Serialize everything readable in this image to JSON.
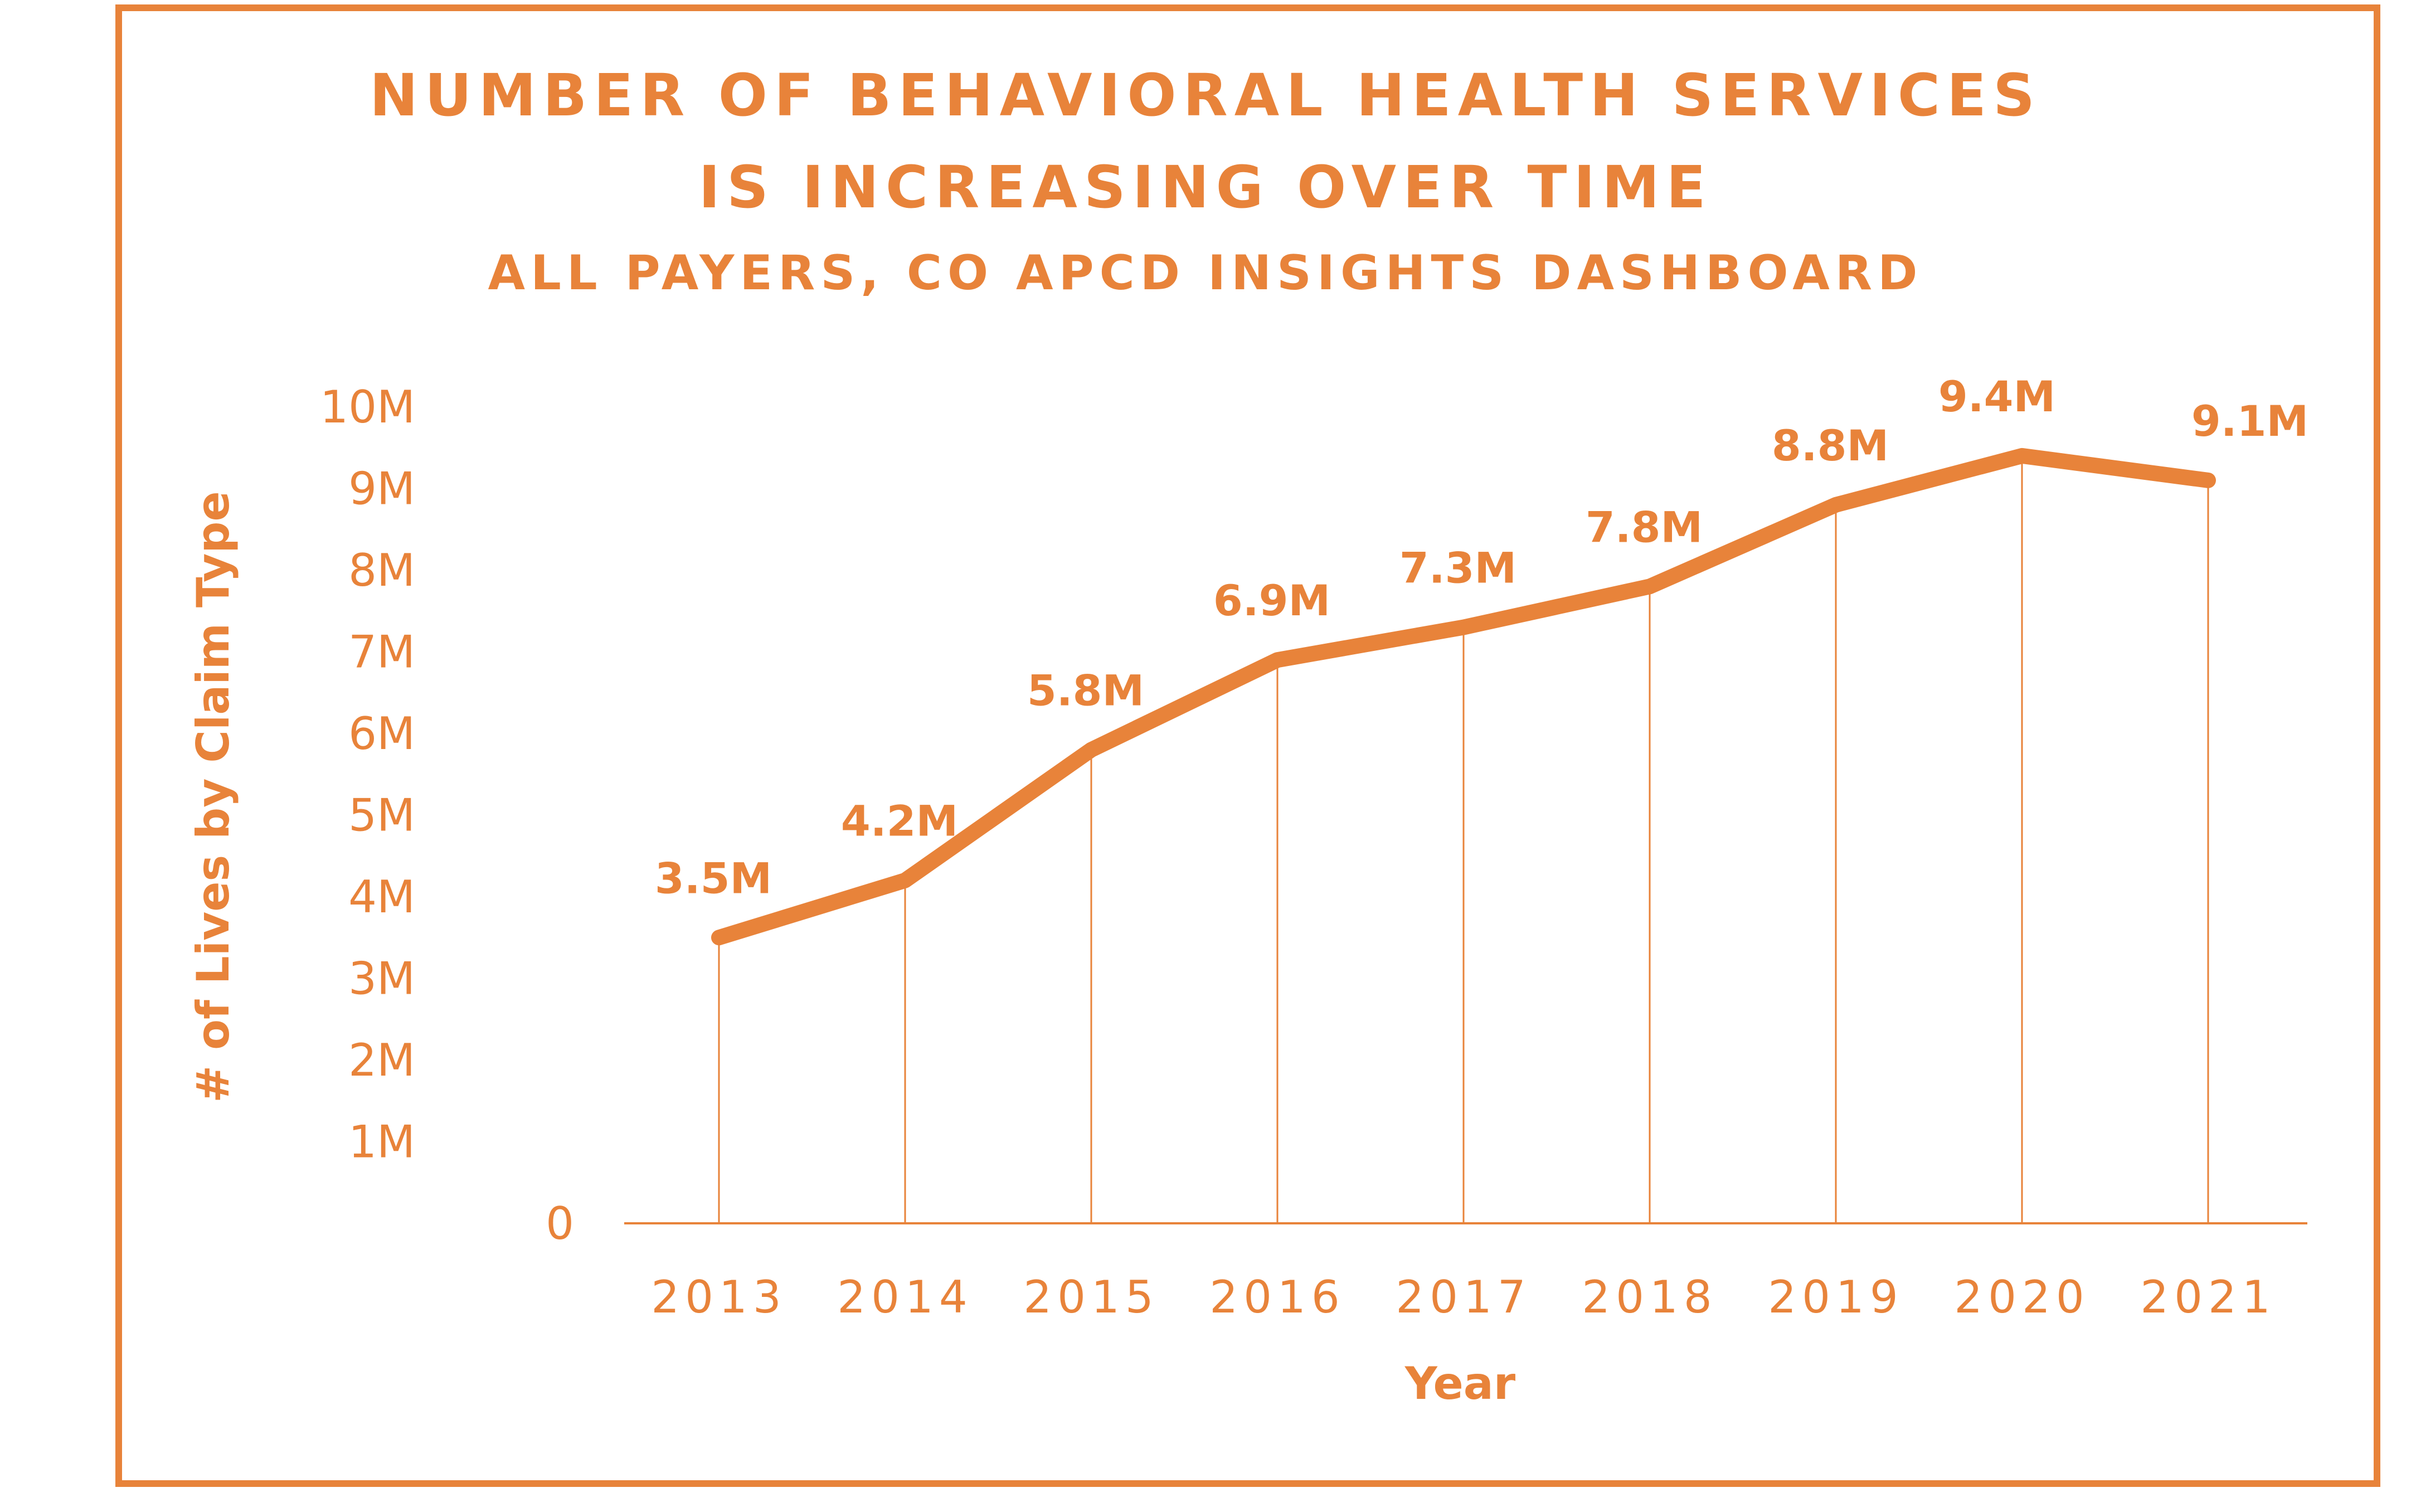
{
  "chart_data": {
    "type": "line",
    "title": "NUMBER OF BEHAVIORAL HEALTH SERVICES",
    "title_line2": "IS INCREASING OVER TIME",
    "subtitle": "ALL PAYERS, CO APCD INSIGHTS DASHBOARD",
    "xlabel": "Year",
    "ylabel": "# of  Lives by Claim Type",
    "categories": [
      "2013",
      "2014",
      "2015",
      "2016",
      "2017",
      "2018",
      "2019",
      "2020",
      "2021"
    ],
    "series": [
      {
        "values": [
          3.5,
          4.2,
          5.8,
          6.9,
          7.3,
          7.8,
          8.8,
          9.4,
          9.1
        ]
      }
    ],
    "data_labels": [
      "3.5M",
      "4.2M",
      "5.8M",
      "6.9M",
      "7.3M",
      "7.8M",
      "8.8M",
      "9.4M",
      "9.1M"
    ],
    "y_ticks": [
      0,
      1,
      2,
      3,
      4,
      5,
      6,
      7,
      8,
      9,
      10
    ],
    "y_tick_labels": [
      "0",
      "1M",
      "2M",
      "3M",
      "4M",
      "5M",
      "6M",
      "7M",
      "8M",
      "9M",
      "10M"
    ],
    "ylim": [
      0,
      10
    ],
    "y_unit": "millions",
    "grid": false,
    "drop_lines": true,
    "legend": "none",
    "color": "#e8833a"
  }
}
